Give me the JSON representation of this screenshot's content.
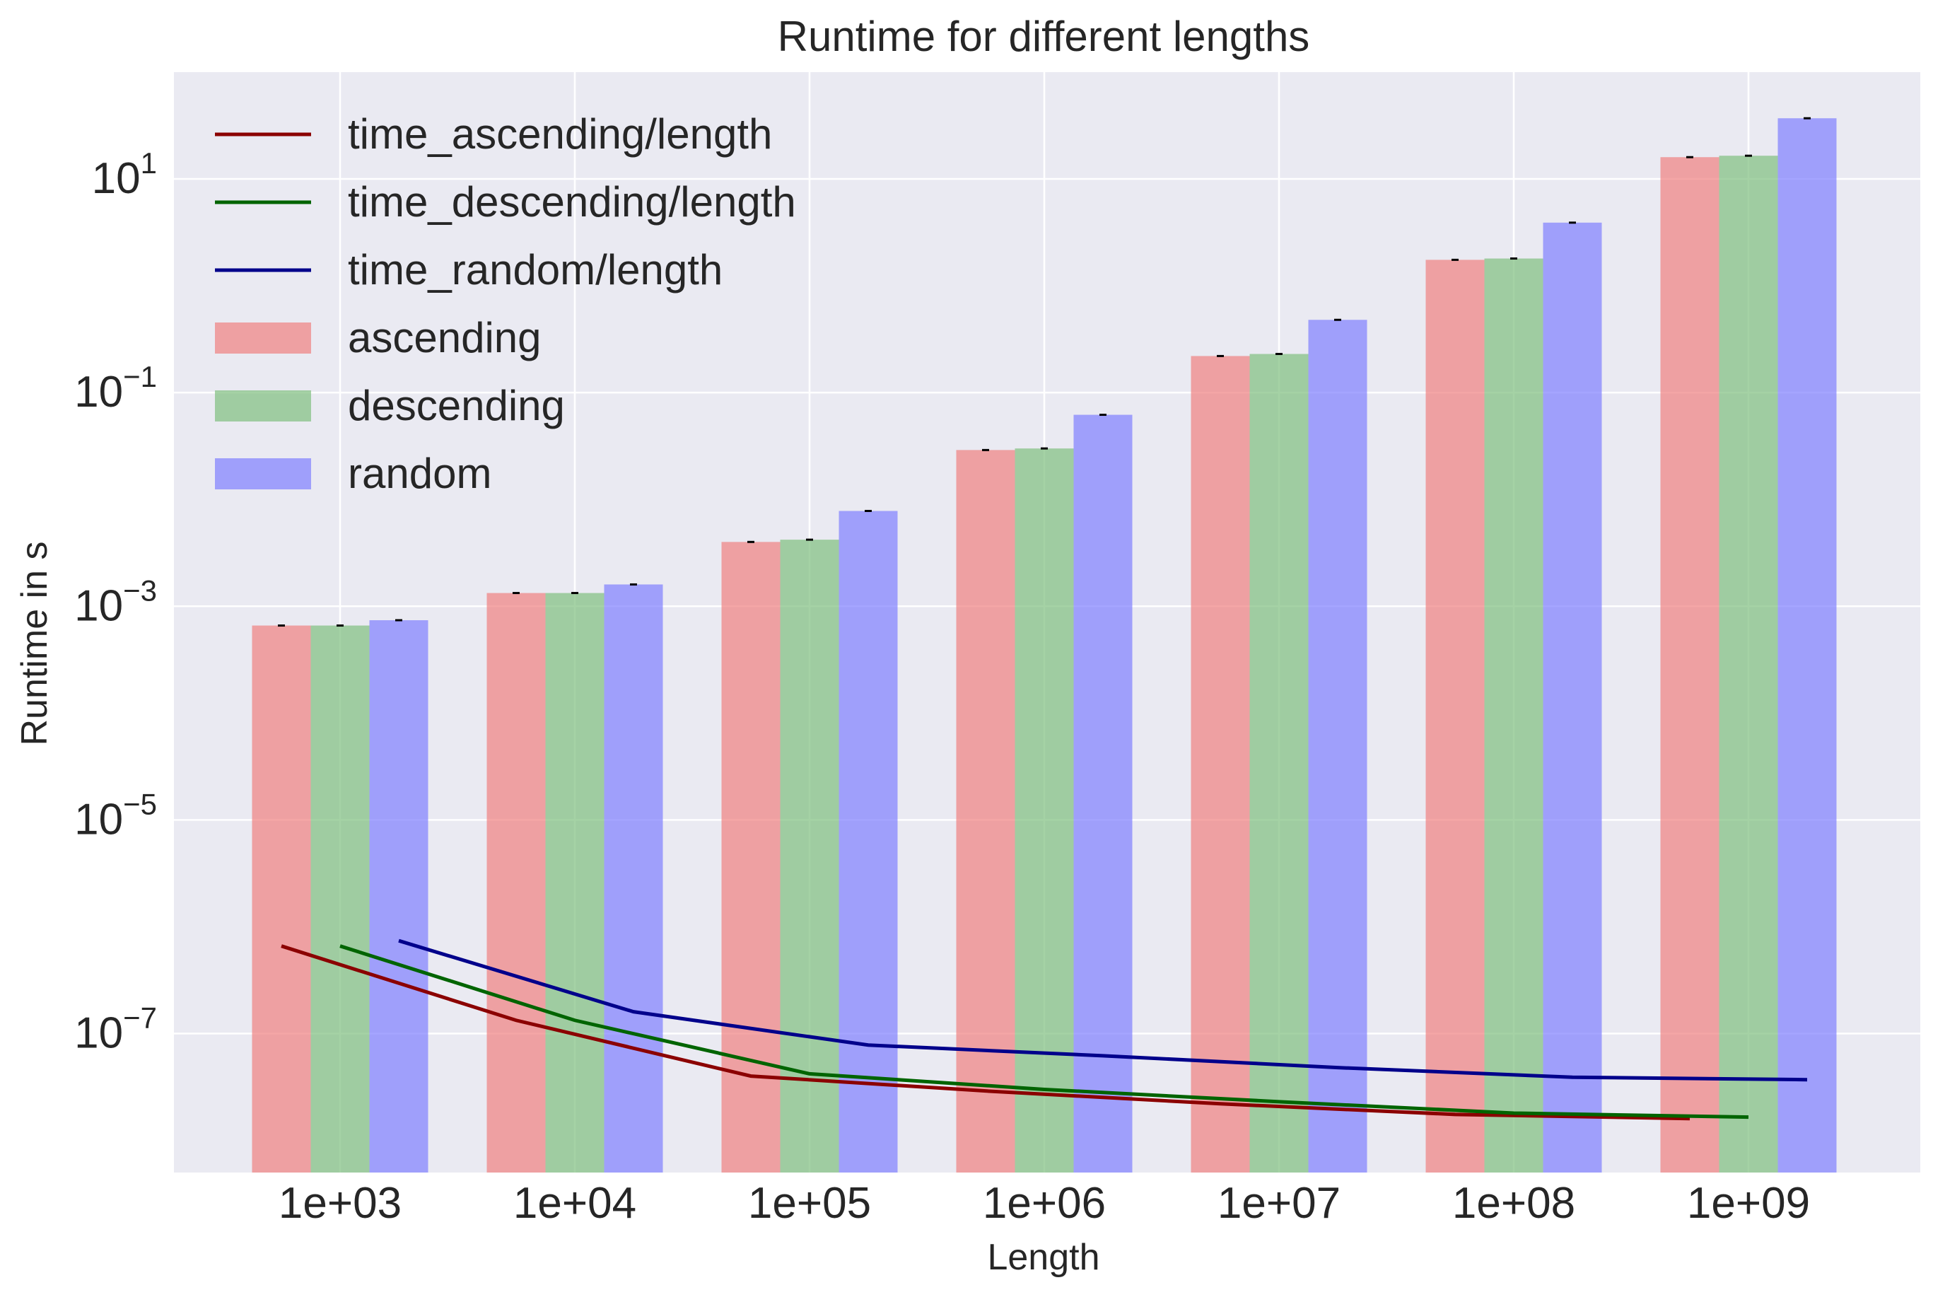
{
  "chart_data": {
    "type": "bar",
    "title": "Runtime for different lengths",
    "xlabel": "Length",
    "ylabel": "Runtime in s",
    "yscale": "log",
    "ylim": [
      5e-09,
      100
    ],
    "grid": true,
    "legend_position": "top-left",
    "categories": [
      "1e+03",
      "1e+04",
      "1e+05",
      "1e+06",
      "1e+07",
      "1e+08",
      "1e+09"
    ],
    "lengths": [
      1000,
      10000,
      100000,
      1000000,
      10000000,
      100000000,
      1000000000
    ],
    "y_ticks": [
      {
        "value": 1e-07,
        "base": "10",
        "exp": "−7"
      },
      {
        "value": 1e-05,
        "base": "10",
        "exp": "−5"
      },
      {
        "value": 0.001,
        "base": "10",
        "exp": "−3"
      },
      {
        "value": 0.1,
        "base": "10",
        "exp": "−1"
      },
      {
        "value": 10,
        "base": "10",
        "exp": "1"
      }
    ],
    "bar_series": [
      {
        "name": "ascending",
        "color": "#f08080",
        "values": [
          0.00066,
          0.00133,
          0.004,
          0.029,
          0.22,
          1.75,
          16.0
        ]
      },
      {
        "name": "descending",
        "color": "#7fbf7f",
        "values": [
          0.00066,
          0.00133,
          0.0042,
          0.03,
          0.23,
          1.8,
          16.5
        ]
      },
      {
        "name": "random",
        "color": "#7f7fff",
        "values": [
          0.00074,
          0.0016,
          0.0078,
          0.062,
          0.48,
          3.9,
          37.0
        ]
      }
    ],
    "line_series": [
      {
        "name": "time_ascending/length",
        "color": "#8b0000",
        "values": [
          6.6e-07,
          1.33e-07,
          4e-08,
          2.9e-08,
          2.2e-08,
          1.75e-08,
          1.6e-08
        ]
      },
      {
        "name": "time_descending/length",
        "color": "#006400",
        "values": [
          6.6e-07,
          1.33e-07,
          4.2e-08,
          3e-08,
          2.3e-08,
          1.8e-08,
          1.65e-08
        ]
      },
      {
        "name": "time_random/length",
        "color": "#00008b",
        "values": [
          7.4e-07,
          1.6e-07,
          7.8e-08,
          6.2e-08,
          4.8e-08,
          3.9e-08,
          3.7e-08
        ]
      }
    ],
    "legend_order": [
      "time_ascending/length",
      "time_descending/length",
      "time_random/length",
      "ascending",
      "descending",
      "random"
    ]
  }
}
